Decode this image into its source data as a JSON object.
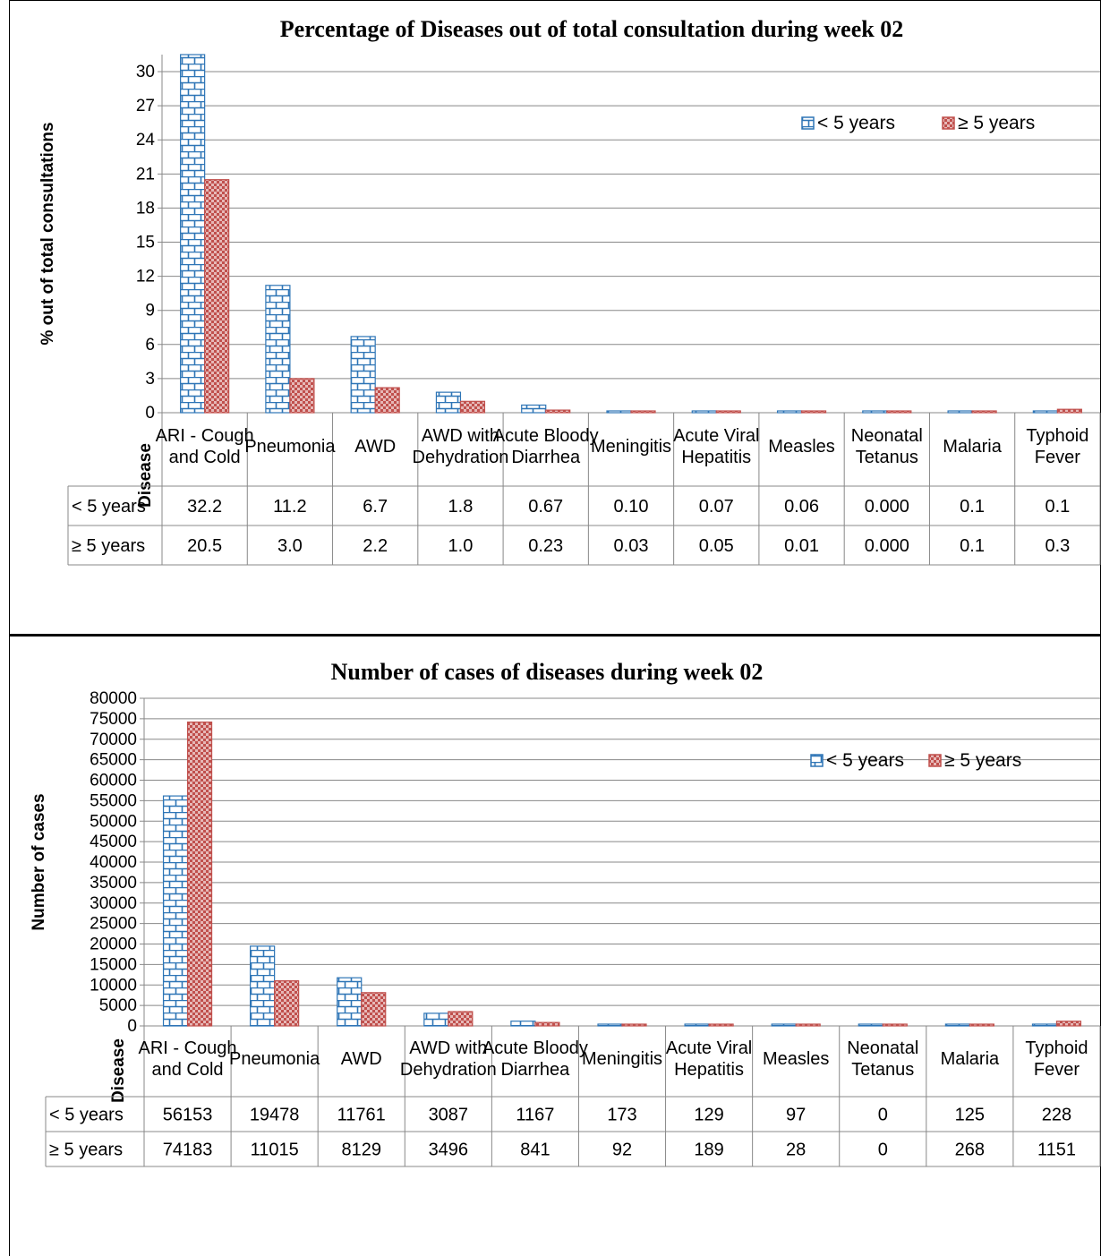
{
  "chart_data": [
    {
      "type": "bar",
      "title": "Percentage of Diseases out of total consultation during week 02",
      "ylabel": "% out of total consultations",
      "table_header": "Disease",
      "categories": [
        [
          "ARI - Cough",
          "and Cold"
        ],
        [
          "Pneumonia"
        ],
        [
          "AWD"
        ],
        [
          "AWD with",
          "Dehydration"
        ],
        [
          "Acute Bloody",
          "Diarrhea"
        ],
        [
          "Meningitis"
        ],
        [
          "Acute Viral",
          "Hepatitis"
        ],
        [
          "Measles"
        ],
        [
          "Neonatal",
          "Tetanus"
        ],
        [
          "Malaria"
        ],
        [
          "Typhoid",
          "Fever"
        ]
      ],
      "ylim": [
        0,
        31.5
      ],
      "yticks": [
        "0",
        "3",
        "6",
        "9",
        "12",
        "15",
        "18",
        "21",
        "24",
        "27",
        "30"
      ],
      "legend_position": "top-right",
      "grid": true,
      "series": [
        {
          "name": "< 5 years",
          "color": "#2e75b6",
          "values": [
            32.2,
            11.2,
            6.7,
            1.8,
            0.67,
            0.1,
            0.07,
            0.06,
            0.0,
            0.1,
            0.1
          ],
          "labels": [
            "32.2",
            "11.2",
            "6.7",
            "1.8",
            "0.67",
            "0.10",
            "0.07",
            "0.06",
            "0.000",
            "0.1",
            "0.1"
          ]
        },
        {
          "name": "≥ 5 years",
          "color": "#c0504d",
          "values": [
            20.5,
            3.0,
            2.2,
            1.0,
            0.23,
            0.03,
            0.05,
            0.01,
            0.0,
            0.1,
            0.3
          ],
          "labels": [
            "20.5",
            "3.0",
            "2.2",
            "1.0",
            "0.23",
            "0.03",
            "0.05",
            "0.01",
            "0.000",
            "0.1",
            "0.3"
          ]
        }
      ]
    },
    {
      "type": "bar",
      "title": "Number of cases of diseases during week 02",
      "ylabel": "Number of cases",
      "table_header": "Disease",
      "categories": [
        [
          "ARI - Cough",
          "and Cold"
        ],
        [
          "Pneumonia"
        ],
        [
          "AWD"
        ],
        [
          "AWD with",
          "Dehydration"
        ],
        [
          "Acute Bloody",
          "Diarrhea"
        ],
        [
          "Meningitis"
        ],
        [
          "Acute Viral",
          "Hepatitis"
        ],
        [
          "Measles"
        ],
        [
          "Neonatal",
          "Tetanus"
        ],
        [
          "Malaria"
        ],
        [
          "Typhoid",
          "Fever"
        ]
      ],
      "ylim": [
        0,
        80000
      ],
      "yticks": [
        "0",
        "5000",
        "10000",
        "15000",
        "20000",
        "25000",
        "30000",
        "35000",
        "40000",
        "45000",
        "50000",
        "55000",
        "60000",
        "65000",
        "70000",
        "75000",
        "80000"
      ],
      "legend_position": "top-right",
      "grid": true,
      "series": [
        {
          "name": "< 5 years",
          "color": "#2e75b6",
          "values": [
            56153,
            19478,
            11761,
            3087,
            1167,
            173,
            129,
            97,
            0,
            125,
            228
          ],
          "labels": [
            "56153",
            "19478",
            "11761",
            "3087",
            "1167",
            "173",
            "129",
            "97",
            "0",
            "125",
            "228"
          ]
        },
        {
          "name": "≥ 5 years",
          "color": "#c0504d",
          "values": [
            74183,
            11015,
            8129,
            3496,
            841,
            92,
            189,
            28,
            0,
            268,
            1151
          ],
          "labels": [
            "74183",
            "11015",
            "8129",
            "3496",
            "841",
            "92",
            "189",
            "28",
            "0",
            "268",
            "1151"
          ]
        }
      ]
    }
  ]
}
